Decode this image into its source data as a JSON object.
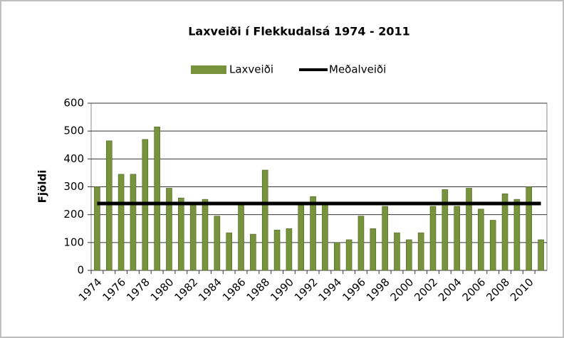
{
  "chart_data": {
    "type": "bar",
    "title": "Laxveiði í Flekkudalsá 1974 - 2011",
    "y_label": "Fjöldi",
    "categories": [
      "1974",
      null,
      "1976",
      null,
      "1978",
      null,
      "1980",
      null,
      "1982",
      null,
      "1984",
      null,
      "1986",
      null,
      "1988",
      null,
      "1990",
      null,
      "1992",
      null,
      "1994",
      null,
      "1996",
      null,
      "1998",
      null,
      "2000",
      null,
      "2002",
      null,
      "2004",
      null,
      "2006",
      null,
      "2008",
      null,
      "2010",
      null
    ],
    "series": [
      {
        "name": "Laxveiði",
        "type": "bar",
        "color": "#77933c",
        "values": [
          300,
          465,
          345,
          345,
          470,
          515,
          295,
          260,
          235,
          255,
          195,
          135,
          235,
          130,
          360,
          145,
          150,
          235,
          265,
          240,
          100,
          110,
          195,
          150,
          230,
          135,
          110,
          135,
          230,
          290,
          230,
          295,
          220,
          180,
          275,
          255,
          300,
          110
        ]
      },
      {
        "name": "Meðalveiði",
        "type": "line",
        "color": "#000000",
        "values": [
          240,
          240,
          240,
          240,
          240,
          240,
          240,
          240,
          240,
          240,
          240,
          240,
          240,
          240,
          240,
          240,
          240,
          240,
          240,
          240,
          240,
          240,
          240,
          240,
          240,
          240,
          240,
          240,
          240,
          240,
          240,
          240,
          240,
          240,
          240,
          240,
          240,
          240
        ]
      }
    ],
    "ylim": [
      0,
      600
    ],
    "yticks": [
      0,
      100,
      200,
      300,
      400,
      500,
      600
    ],
    "grid": true,
    "legend": "top"
  }
}
